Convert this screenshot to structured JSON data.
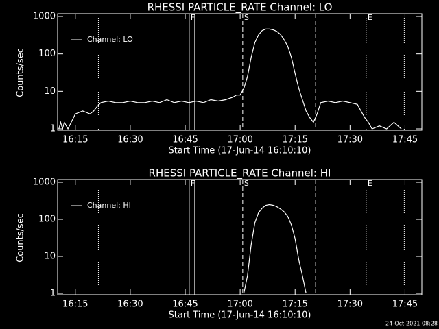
{
  "chart_data": [
    {
      "type": "line",
      "title": "RHESSI PARTICLE_RATE Channel: LO",
      "xlabel": "Start Time (17-Jun-14 16:10:10)",
      "ylabel": "Counts/sec",
      "log_y": true,
      "xlim": [
        970.17,
        1069.6
      ],
      "ylim": [
        1,
        1000
      ],
      "xticks": [
        {
          "value": 975,
          "label": "16:15"
        },
        {
          "value": 990,
          "label": "16:30"
        },
        {
          "value": 1005,
          "label": "16:45"
        },
        {
          "value": 1020,
          "label": "17:00"
        },
        {
          "value": 1035,
          "label": "17:15"
        },
        {
          "value": 1050,
          "label": "17:30"
        },
        {
          "value": 1065,
          "label": "17:45"
        }
      ],
      "yticks": [
        1,
        10,
        100,
        1000
      ],
      "markers": [
        {
          "x": 981.3,
          "style": "dotted"
        },
        {
          "x": 1006.1,
          "style": "solid",
          "label": "F"
        },
        {
          "x": 1007.6,
          "style": "solid"
        },
        {
          "x": 1020.7,
          "style": "dashed",
          "label": "S"
        },
        {
          "x": 1040.6,
          "style": "dashed"
        },
        {
          "x": 1054.4,
          "style": "dotted",
          "label": "E"
        },
        {
          "x": 1064.8,
          "style": "dotted"
        }
      ],
      "series": [
        {
          "name": "Channel: LO",
          "color": "#ffffff",
          "x": [
            970.5,
            971,
            971.5,
            972,
            973,
            975,
            977,
            979,
            980,
            981,
            982,
            984,
            986,
            988,
            990,
            992,
            994,
            996,
            998,
            1000,
            1002,
            1004,
            1006,
            1008,
            1010,
            1012,
            1014,
            1016,
            1018,
            1019,
            1020,
            1021,
            1022,
            1023,
            1024,
            1025,
            1026,
            1027,
            1028,
            1029,
            1030,
            1031,
            1032,
            1033,
            1034,
            1035,
            1036,
            1037,
            1038,
            1039,
            1040,
            1041,
            1042,
            1044,
            1046,
            1048,
            1050,
            1052,
            1053,
            1054,
            1055,
            1056,
            1058,
            1060,
            1062,
            1064
          ],
          "values": [
            1,
            1.5,
            1,
            1.5,
            1,
            2.5,
            3,
            2.5,
            3,
            4,
            5,
            5.5,
            5,
            5,
            5.5,
            5,
            5,
            5.5,
            5,
            6,
            5,
            5.5,
            5,
            5.5,
            5,
            6,
            5.5,
            6,
            7,
            8,
            8,
            12,
            25,
            80,
            200,
            320,
            420,
            460,
            460,
            440,
            400,
            330,
            240,
            160,
            80,
            30,
            12,
            6,
            3,
            2,
            1.5,
            2.5,
            5,
            5.5,
            5,
            5.5,
            5,
            4.5,
            3,
            2,
            1.5,
            1,
            1.2,
            1,
            1.5,
            1
          ]
        }
      ]
    },
    {
      "type": "line",
      "title": "RHESSI PARTICLE_RATE Channel: HI",
      "xlabel": "Start Time (17-Jun-14 16:10:10)",
      "ylabel": "Counts/sec",
      "log_y": true,
      "xlim": [
        970.17,
        1069.6
      ],
      "ylim": [
        1,
        1000
      ],
      "xticks": [
        {
          "value": 975,
          "label": "16:15"
        },
        {
          "value": 990,
          "label": "16:30"
        },
        {
          "value": 1005,
          "label": "16:45"
        },
        {
          "value": 1020,
          "label": "17:00"
        },
        {
          "value": 1035,
          "label": "17:15"
        },
        {
          "value": 1050,
          "label": "17:30"
        },
        {
          "value": 1065,
          "label": "17:45"
        }
      ],
      "yticks": [
        1,
        10,
        100,
        1000
      ],
      "markers": [
        {
          "x": 981.3,
          "style": "dotted"
        },
        {
          "x": 1006.1,
          "style": "solid",
          "label": "F"
        },
        {
          "x": 1007.6,
          "style": "solid"
        },
        {
          "x": 1020.7,
          "style": "dashed",
          "label": "S"
        },
        {
          "x": 1040.6,
          "style": "dashed"
        },
        {
          "x": 1054.4,
          "style": "dotted",
          "label": "E"
        },
        {
          "x": 1064.8,
          "style": "dotted"
        }
      ],
      "series": [
        {
          "name": "Channel: HI",
          "color": "#ffffff",
          "x": [
            1021,
            1022,
            1023,
            1024,
            1025,
            1026,
            1027,
            1028,
            1029,
            1030,
            1031,
            1032,
            1033,
            1034,
            1035,
            1036,
            1037,
            1038
          ],
          "values": [
            1,
            3,
            20,
            80,
            150,
            200,
            240,
            250,
            240,
            220,
            190,
            160,
            120,
            70,
            30,
            8,
            3,
            1
          ]
        }
      ]
    }
  ],
  "footer": "24-Oct-2021 08:28"
}
